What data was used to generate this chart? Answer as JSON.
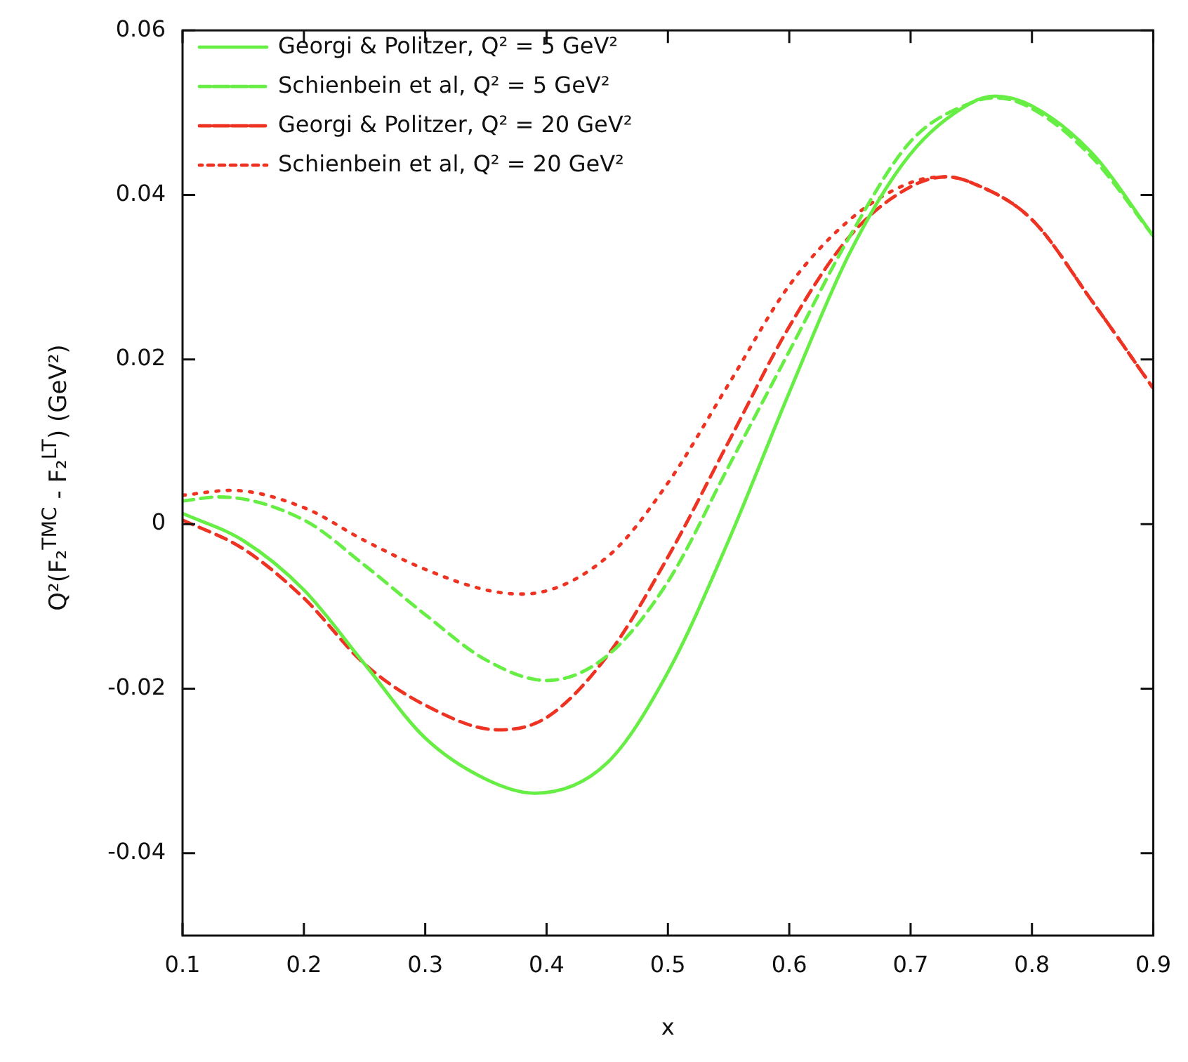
{
  "chart_data": {
    "type": "line",
    "xlabel": "x",
    "ylabel": "Q²(F₂$^{TMC}$ - F₂$^{LT}$)  (GeV²)",
    "xlim": [
      0.1,
      0.9
    ],
    "xticks": [
      0.1,
      0.2,
      0.3,
      0.4,
      0.5,
      0.6,
      0.7,
      0.8,
      0.9
    ],
    "ylim": [
      -0.05,
      0.06
    ],
    "yticks": [
      -0.04,
      -0.02,
      0,
      0.02,
      0.04,
      0.06
    ],
    "grid": false,
    "legend": "top left",
    "marker": "none",
    "series": [
      {
        "name": "Georgi & Politzer, Q² = 5 GeV²",
        "color": "#66ee44",
        "line_style": "solid",
        "x": [
          0.1,
          0.15,
          0.2,
          0.25,
          0.3,
          0.35,
          0.39,
          0.45,
          0.5,
          0.55,
          0.6,
          0.65,
          0.7,
          0.75,
          0.77,
          0.8,
          0.85,
          0.9
        ],
        "values": [
          0.0013,
          -0.002,
          -0.008,
          -0.017,
          -0.026,
          -0.031,
          -0.0327,
          -0.029,
          -0.018,
          -0.002,
          0.016,
          0.033,
          0.045,
          0.0512,
          0.052,
          0.0508,
          0.045,
          0.035
        ]
      },
      {
        "name": "Schienbein et al, Q² = 5 GeV²",
        "color": "#66ee44",
        "line_style": "dashed",
        "x": [
          0.1,
          0.13,
          0.2,
          0.25,
          0.3,
          0.35,
          0.4,
          0.45,
          0.5,
          0.55,
          0.6,
          0.65,
          0.7,
          0.75,
          0.77,
          0.8,
          0.85,
          0.9
        ],
        "values": [
          0.0028,
          0.0033,
          0.0005,
          -0.005,
          -0.011,
          -0.0165,
          -0.019,
          -0.016,
          -0.007,
          0.007,
          0.021,
          0.035,
          0.0465,
          0.0512,
          0.0518,
          0.0505,
          0.0445,
          0.035
        ]
      },
      {
        "name": "Georgi & Politzer, Q² = 20 GeV²",
        "color": "#ee3322",
        "line_style": "dashed",
        "x": [
          0.1,
          0.15,
          0.2,
          0.25,
          0.3,
          0.36,
          0.4,
          0.45,
          0.5,
          0.55,
          0.6,
          0.65,
          0.7,
          0.73,
          0.75,
          0.8,
          0.85,
          0.9
        ],
        "values": [
          0.0005,
          -0.003,
          -0.009,
          -0.017,
          -0.022,
          -0.025,
          -0.0235,
          -0.016,
          -0.004,
          0.01,
          0.024,
          0.035,
          0.041,
          0.0422,
          0.0415,
          0.037,
          0.027,
          0.0165
        ]
      },
      {
        "name": "Schienbein et al, Q² = 20 GeV²",
        "color": "#ee3322",
        "line_style": "dotted",
        "x": [
          0.1,
          0.14,
          0.2,
          0.25,
          0.3,
          0.35,
          0.38,
          0.45,
          0.5,
          0.55,
          0.6,
          0.65,
          0.7,
          0.73,
          0.75,
          0.8,
          0.85,
          0.9
        ],
        "values": [
          0.0035,
          0.0041,
          0.002,
          -0.002,
          -0.0055,
          -0.008,
          -0.0085,
          -0.004,
          0.005,
          0.017,
          0.029,
          0.037,
          0.0415,
          0.0422,
          0.0415,
          0.037,
          0.027,
          0.0165
        ]
      }
    ]
  }
}
